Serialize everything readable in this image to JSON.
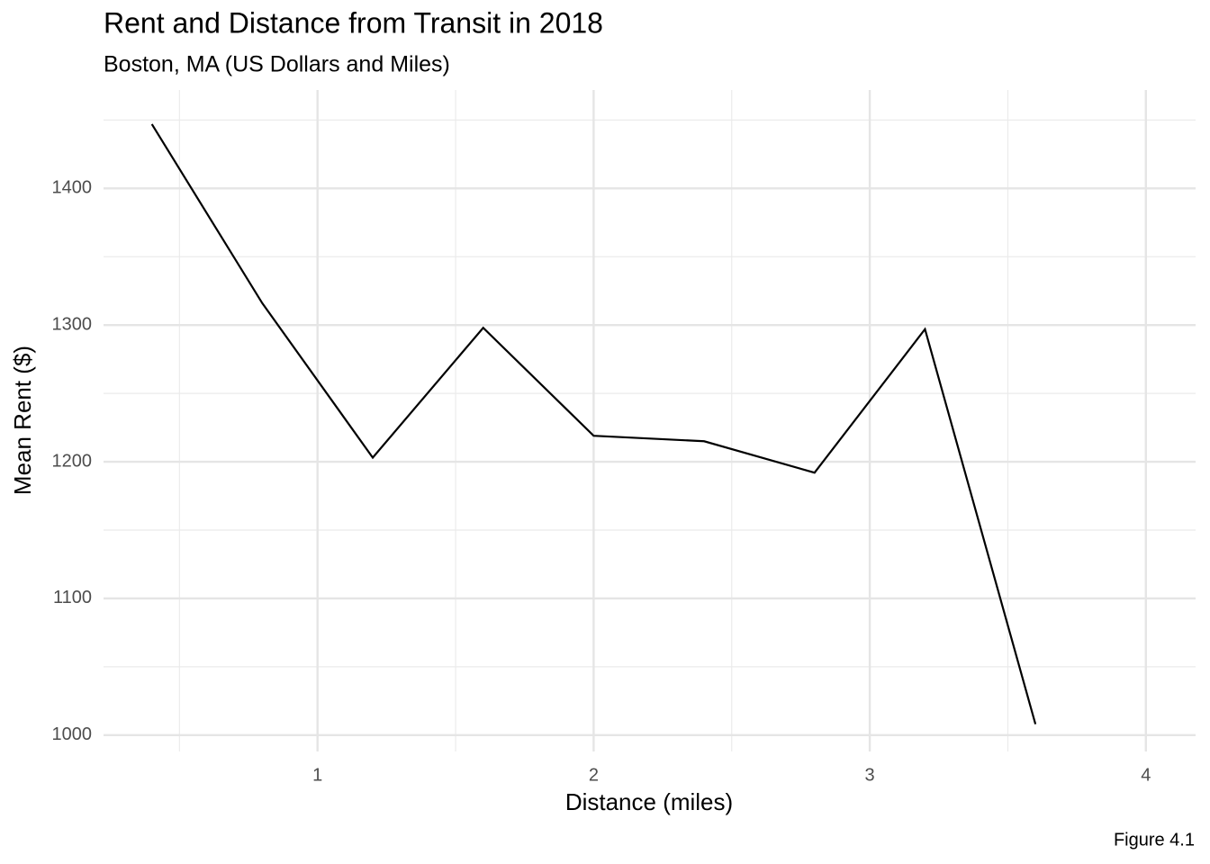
{
  "chart_data": {
    "type": "line",
    "title": "Rent and Distance from Transit in 2018",
    "subtitle": "Boston, MA (US Dollars and Miles)",
    "caption": "Figure 4.1",
    "x_label": "Distance (miles)",
    "y_label": "Mean Rent ($)",
    "x": [
      0.4,
      0.8,
      1.2,
      1.6,
      2.0,
      2.4,
      2.8,
      3.2,
      3.6
    ],
    "series": [
      {
        "name": "Mean Rent",
        "color": "#000000",
        "values": [
          1447,
          1316,
          1203,
          1298,
          1219,
          1215,
          1192,
          1297,
          1008
        ]
      }
    ],
    "xlim": [
      0.225,
      4.18
    ],
    "ylim": [
      988,
      1472
    ],
    "xticks": [
      1,
      2,
      3,
      4
    ],
    "yticks": [
      1000,
      1100,
      1200,
      1300,
      1400
    ],
    "xminor": [
      0.5,
      1.5,
      2.5,
      3.5
    ],
    "yminor": [
      1050,
      1150,
      1250,
      1350,
      1450
    ],
    "grid": true
  }
}
